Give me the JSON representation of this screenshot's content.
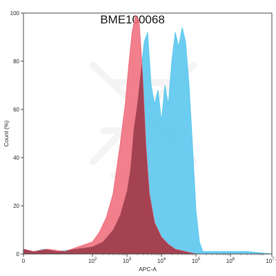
{
  "chart_data": {
    "type": "area",
    "title": "BME100068",
    "xlabel": "APC-A",
    "ylabel": "Count (%)",
    "xscale": "log",
    "xlim": [
      0,
      7.2
    ],
    "ylim": [
      0,
      100
    ],
    "x_ticks": [
      {
        "value": 0,
        "base": "0",
        "exp": ""
      },
      {
        "value": 2,
        "base": "10",
        "exp": "2"
      },
      {
        "value": 3,
        "base": "10",
        "exp": "3"
      },
      {
        "value": 4,
        "base": "10",
        "exp": "4"
      },
      {
        "value": 5,
        "base": "10",
        "exp": "5"
      },
      {
        "value": 6,
        "base": "10",
        "exp": "6"
      },
      {
        "value": 7.2,
        "base": "10",
        "exp": "7.2"
      }
    ],
    "y_ticks": [
      0,
      20,
      40,
      60,
      80,
      100
    ],
    "grid": false,
    "legend": "none",
    "series": [
      {
        "color": "#5cc8ee",
        "points": [
          [
            0,
            2
          ],
          [
            0.3,
            1
          ],
          [
            0.6,
            2
          ],
          [
            1.0,
            1
          ],
          [
            1.5,
            2
          ],
          [
            2.0,
            3
          ],
          [
            2.3,
            5
          ],
          [
            2.6,
            10
          ],
          [
            2.8,
            16
          ],
          [
            3.0,
            26
          ],
          [
            3.1,
            35
          ],
          [
            3.2,
            52
          ],
          [
            3.3,
            62
          ],
          [
            3.4,
            75
          ],
          [
            3.5,
            88
          ],
          [
            3.6,
            92
          ],
          [
            3.7,
            70
          ],
          [
            3.8,
            62
          ],
          [
            3.9,
            68
          ],
          [
            4.0,
            55
          ],
          [
            4.1,
            70
          ],
          [
            4.2,
            62
          ],
          [
            4.3,
            80
          ],
          [
            4.4,
            92
          ],
          [
            4.5,
            86
          ],
          [
            4.6,
            94
          ],
          [
            4.7,
            88
          ],
          [
            4.8,
            70
          ],
          [
            4.9,
            45
          ],
          [
            5.0,
            18
          ],
          [
            5.1,
            5
          ],
          [
            5.2,
            1
          ],
          [
            5.5,
            1
          ],
          [
            6.0,
            1
          ],
          [
            6.5,
            1
          ],
          [
            7.2,
            0
          ]
        ]
      },
      {
        "color": "#f06878",
        "points": [
          [
            0,
            2
          ],
          [
            0.3,
            1
          ],
          [
            0.7,
            2
          ],
          [
            1.2,
            1
          ],
          [
            1.6,
            3
          ],
          [
            2.0,
            5
          ],
          [
            2.2,
            9
          ],
          [
            2.4,
            15
          ],
          [
            2.6,
            25
          ],
          [
            2.8,
            45
          ],
          [
            2.95,
            62
          ],
          [
            3.05,
            78
          ],
          [
            3.15,
            92
          ],
          [
            3.25,
            99
          ],
          [
            3.35,
            97
          ],
          [
            3.45,
            75
          ],
          [
            3.55,
            45
          ],
          [
            3.65,
            25
          ],
          [
            3.8,
            13
          ],
          [
            4.0,
            7
          ],
          [
            4.2,
            4
          ],
          [
            4.4,
            2
          ],
          [
            4.7,
            1
          ],
          [
            5.0,
            0
          ],
          [
            7.2,
            0
          ]
        ]
      }
    ],
    "overlap_color": "#9a3848"
  }
}
